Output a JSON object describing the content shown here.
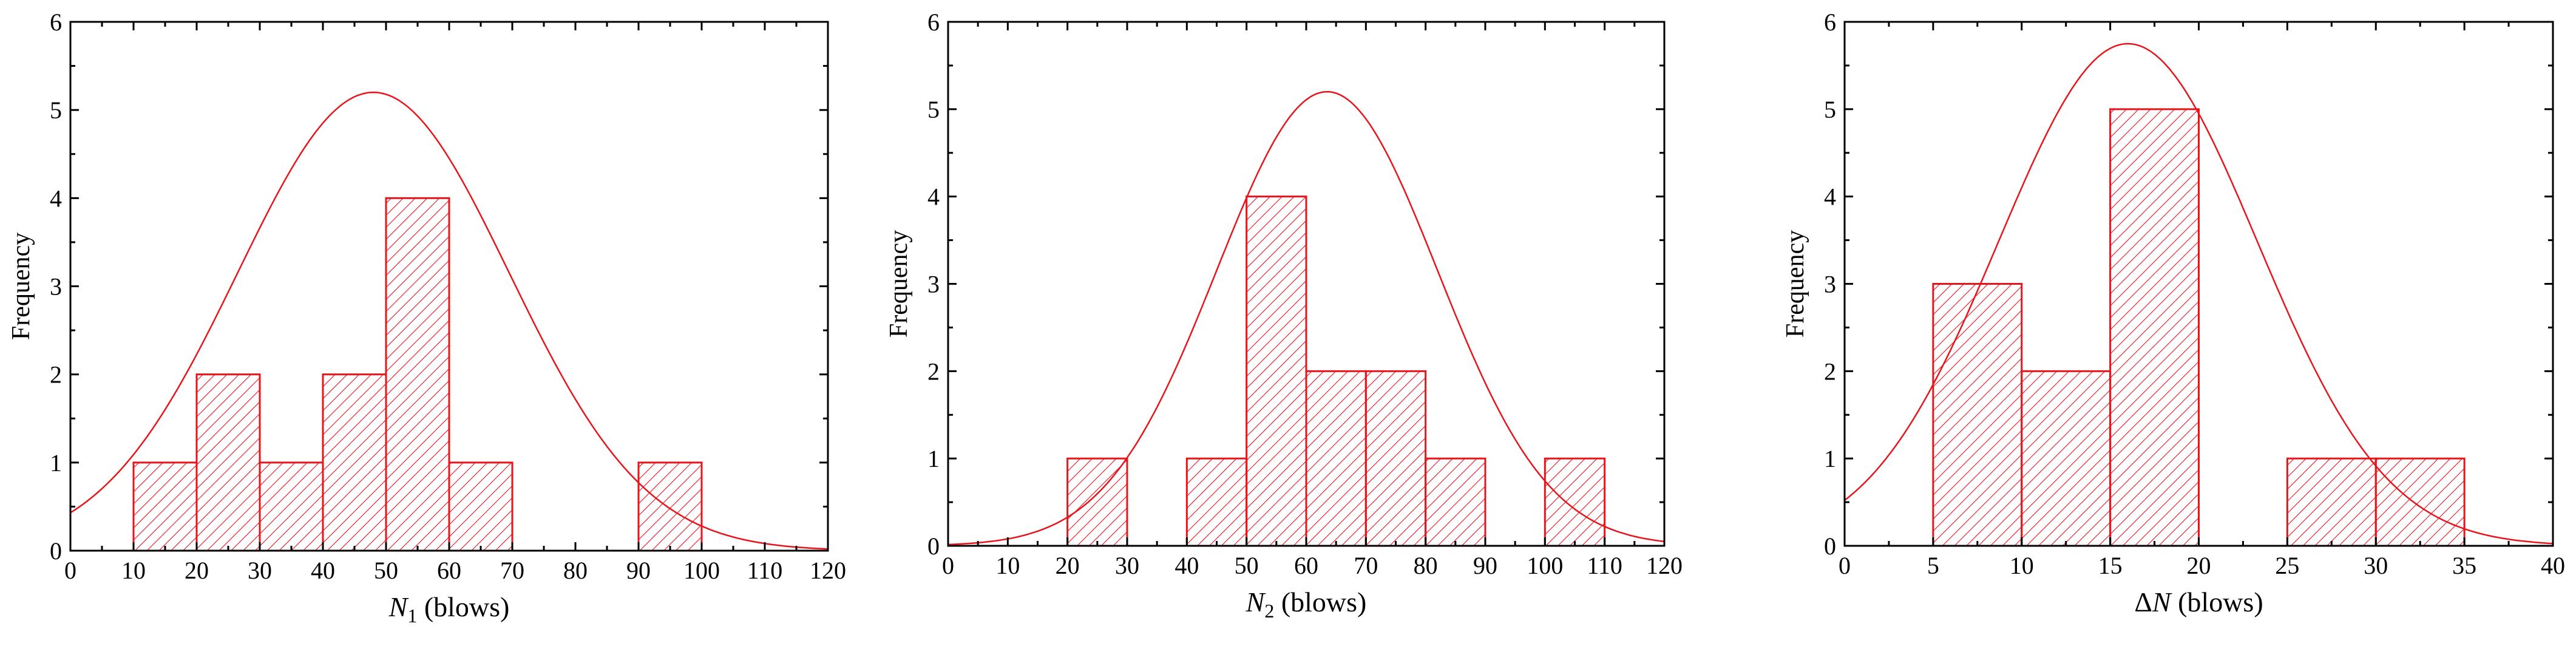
{
  "colors": {
    "accent": "#e8141b",
    "axis": "#000000"
  },
  "chart_data": [
    {
      "type": "bar",
      "bin_edges": [
        10,
        20,
        30,
        40,
        50,
        60,
        70,
        80,
        90,
        100
      ],
      "values": [
        1,
        2,
        1,
        2,
        4,
        1,
        0,
        0,
        1
      ],
      "normal_curve": {
        "mean": 48,
        "sd": 21.5,
        "peak": 5.2
      },
      "xlabel_var": "N",
      "xlabel_sub": "1",
      "xlabel_unit": " (blows)",
      "ylabel": "Frequency",
      "xlim": [
        0,
        120
      ],
      "ylim": [
        0,
        6
      ],
      "xticks": [
        0,
        10,
        20,
        30,
        40,
        50,
        60,
        70,
        80,
        90,
        100,
        110,
        120
      ],
      "yticks": [
        0,
        1,
        2,
        3,
        4,
        5,
        6
      ],
      "grid": false
    },
    {
      "type": "bar",
      "bin_edges": [
        20,
        30,
        40,
        50,
        60,
        70,
        80,
        90,
        100,
        110
      ],
      "values": [
        1,
        0,
        1,
        4,
        2,
        2,
        1,
        0,
        1
      ],
      "normal_curve": {
        "mean": 63.5,
        "sd": 18.5,
        "peak": 5.2
      },
      "xlabel_var": "N",
      "xlabel_sub": "2",
      "xlabel_unit": " (blows)",
      "ylabel": "Frequency",
      "xlim": [
        0,
        120
      ],
      "ylim": [
        0,
        6
      ],
      "xticks": [
        0,
        10,
        20,
        30,
        40,
        50,
        60,
        70,
        80,
        90,
        100,
        110,
        120
      ],
      "yticks": [
        0,
        1,
        2,
        3,
        4,
        5,
        6
      ],
      "grid": false
    },
    {
      "type": "bar",
      "bin_edges": [
        5,
        10,
        15,
        20,
        25,
        30,
        35
      ],
      "values": [
        3,
        2,
        5,
        0,
        1,
        1
      ],
      "normal_curve": {
        "mean": 16,
        "sd": 7.3,
        "peak": 5.75
      },
      "xlabel_var": "ΔN",
      "xlabel_sub": "",
      "xlabel_unit": " (blows)",
      "ylabel": "Frequency",
      "xlim": [
        0,
        40
      ],
      "ylim": [
        0,
        6
      ],
      "xticks": [
        0,
        5,
        10,
        15,
        20,
        25,
        30,
        35,
        40
      ],
      "yticks": [
        0,
        1,
        2,
        3,
        4,
        5,
        6
      ],
      "grid": false
    }
  ]
}
